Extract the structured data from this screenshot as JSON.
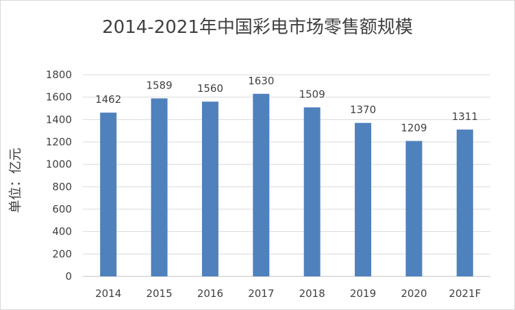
{
  "chart_data": {
    "type": "bar",
    "title": "2014-2021年中国彩电市场零售额规模",
    "ylabel": "单位：亿元",
    "xlabel": "",
    "categories": [
      "2014",
      "2015",
      "2016",
      "2017",
      "2018",
      "2019",
      "2020",
      "2021F"
    ],
    "values": [
      1462,
      1589,
      1560,
      1630,
      1509,
      1370,
      1209,
      1311
    ],
    "data_labels": [
      "1462",
      "1589",
      "1560",
      "1630",
      "1509",
      "1370",
      "1209",
      "1311"
    ],
    "ylim": [
      0,
      1800
    ],
    "yticks": [
      "0",
      "200",
      "400",
      "600",
      "800",
      "1000",
      "1200",
      "1400",
      "1600",
      "1800"
    ],
    "grid": true,
    "legend": "none",
    "colors": {
      "bar": "#4f81bd",
      "grid": "#d9d9d9",
      "text": "#404040"
    }
  }
}
